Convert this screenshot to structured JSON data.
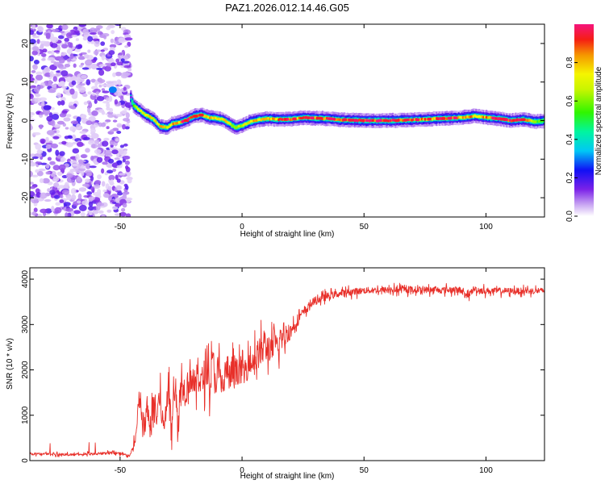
{
  "title": "PAZ1.2026.012.14.46.G05",
  "chart_data": [
    {
      "type": "heatmap",
      "name": "spectrogram",
      "xlabel": "Height of straight line (km)",
      "ylabel": "Frequency (Hz)",
      "xlim": [
        -87,
        124
      ],
      "ylim": [
        -25,
        25
      ],
      "xticks": [
        -50,
        0,
        50,
        100
      ],
      "yticks": [
        -20,
        -10,
        0,
        10,
        20
      ],
      "xtick_labels": [
        "-50",
        "0",
        "50",
        "100"
      ],
      "ytick_labels": [
        "-20",
        "-10",
        "0",
        "10",
        "20"
      ],
      "colorbar": {
        "label": "Normalized spectral amplitude",
        "range": [
          0,
          1
        ],
        "ticks": [
          0.0,
          0.2,
          0.4,
          0.6,
          0.8
        ],
        "tick_labels": [
          "0.0",
          "0.2",
          "0.4",
          "0.6",
          "0.8"
        ]
      },
      "noise_region_x": [
        -87,
        -46
      ],
      "ridge": {
        "x": [
          -46,
          -45,
          -43,
          -40,
          -37,
          -34,
          -31,
          -29,
          -26,
          -23,
          -20,
          -17,
          -14,
          -11,
          -8,
          -5,
          -3,
          0,
          3,
          6,
          10,
          15,
          20,
          25,
          30,
          35,
          40,
          50,
          60,
          70,
          80,
          90,
          95,
          100,
          105,
          110,
          115,
          120,
          124
        ],
        "freq": [
          6,
          4,
          3,
          1.5,
          0.5,
          -1.5,
          -1.8,
          -0.8,
          -0.5,
          0.2,
          1.2,
          1.5,
          0.8,
          0.6,
          0.2,
          -1,
          -1.8,
          -1.2,
          -0.3,
          0.2,
          0.5,
          0.3,
          0.4,
          0.8,
          0.6,
          0.5,
          0.2,
          0,
          0,
          0.2,
          0.5,
          0.8,
          1.2,
          0.8,
          0.5,
          0,
          0.3,
          -0.3,
          0
        ],
        "amp": [
          0.15,
          0.6,
          0.7,
          0.75,
          0.75,
          0.8,
          0.7,
          0.8,
          0.85,
          0.9,
          0.9,
          0.85,
          0.8,
          0.75,
          0.75,
          0.7,
          0.65,
          0.7,
          0.75,
          0.8,
          0.8,
          0.85,
          0.85,
          0.85,
          0.85,
          0.9,
          0.9,
          0.95,
          0.95,
          0.9,
          0.85,
          0.85,
          0.8,
          0.85,
          0.9,
          0.95,
          0.9,
          0.6,
          0.5
        ]
      }
    },
    {
      "type": "line",
      "name": "snr",
      "xlabel": "Height of straight line (km)",
      "ylabel": "SNR (10 * v/v)",
      "xlim": [
        -87,
        124
      ],
      "ylim": [
        0,
        4250
      ],
      "xticks": [
        -50,
        0,
        50,
        100
      ],
      "yticks": [
        0,
        1000,
        2000,
        3000,
        4000
      ],
      "xtick_labels": [
        "-50",
        "0",
        "50",
        "100"
      ],
      "ytick_labels": [
        "0",
        "1000",
        "2000",
        "3000",
        "4000"
      ],
      "color": "#e8302a",
      "series": [
        {
          "name": "SNR",
          "x": [
            -87,
            -80,
            -70,
            -60,
            -52,
            -48,
            -46,
            -44,
            -43,
            -42,
            -41,
            -40,
            -39,
            -38,
            -37,
            -36,
            -35,
            -34,
            -33,
            -32,
            -31,
            -30,
            -29,
            -28,
            -27,
            -26,
            -25,
            -24,
            -23,
            -22,
            -21,
            -20,
            -19,
            -18,
            -17,
            -16,
            -15,
            -14,
            -13,
            -12,
            -11,
            -10,
            -9,
            -8,
            -7,
            -6,
            -5,
            -4,
            -3,
            -2,
            -1,
            0,
            1,
            2,
            3,
            4,
            5,
            6,
            7,
            8,
            9,
            10,
            11,
            12,
            13,
            14,
            15,
            16,
            17,
            18,
            20,
            22,
            24,
            26,
            28,
            30,
            35,
            40,
            45,
            50,
            60,
            70,
            80,
            90,
            92,
            95,
            100,
            110,
            124
          ],
          "base": [
            150,
            150,
            130,
            150,
            180,
            130,
            100,
            350,
            800,
            1450,
            900,
            650,
            1200,
            700,
            950,
            1300,
            900,
            1400,
            1100,
            650,
            1350,
            1600,
            700,
            1800,
            1250,
            700,
            2000,
            1600,
            1500,
            1800,
            1900,
            1800,
            1550,
            2050,
            1700,
            1750,
            2100,
            1950,
            1700,
            2200,
            1750,
            2000,
            1850,
            1600,
            1900,
            2050,
            1800,
            2000,
            1750,
            2100,
            1850,
            2150,
            1900,
            2100,
            2350,
            2050,
            2400,
            2200,
            2450,
            2300,
            2600,
            2450,
            2550,
            2350,
            2650,
            2500,
            2500,
            2750,
            2600,
            2800,
            2850,
            3050,
            3200,
            3300,
            3450,
            3520,
            3620,
            3680,
            3720,
            3750,
            3760,
            3770,
            3760,
            3760,
            3600,
            3780,
            3740,
            3740,
            3740
          ],
          "jitter": [
            60,
            60,
            60,
            60,
            80,
            60,
            60,
            200,
            500,
            700,
            600,
            500,
            700,
            600,
            600,
            700,
            600,
            700,
            700,
            500,
            800,
            900,
            600,
            900,
            800,
            500,
            900,
            800,
            700,
            800,
            900,
            800,
            700,
            900,
            800,
            800,
            900,
            800,
            800,
            900,
            800,
            800,
            800,
            700,
            800,
            800,
            700,
            800,
            700,
            800,
            700,
            800,
            700,
            800,
            800,
            700,
            800,
            800,
            800,
            800,
            800,
            700,
            700,
            700,
            700,
            600,
            600,
            600,
            500,
            500,
            400,
            300,
            250,
            220,
            200,
            200,
            180,
            170,
            170,
            160,
            160,
            160,
            160,
            160,
            160,
            160,
            160,
            150,
            150
          ]
        }
      ]
    }
  ]
}
